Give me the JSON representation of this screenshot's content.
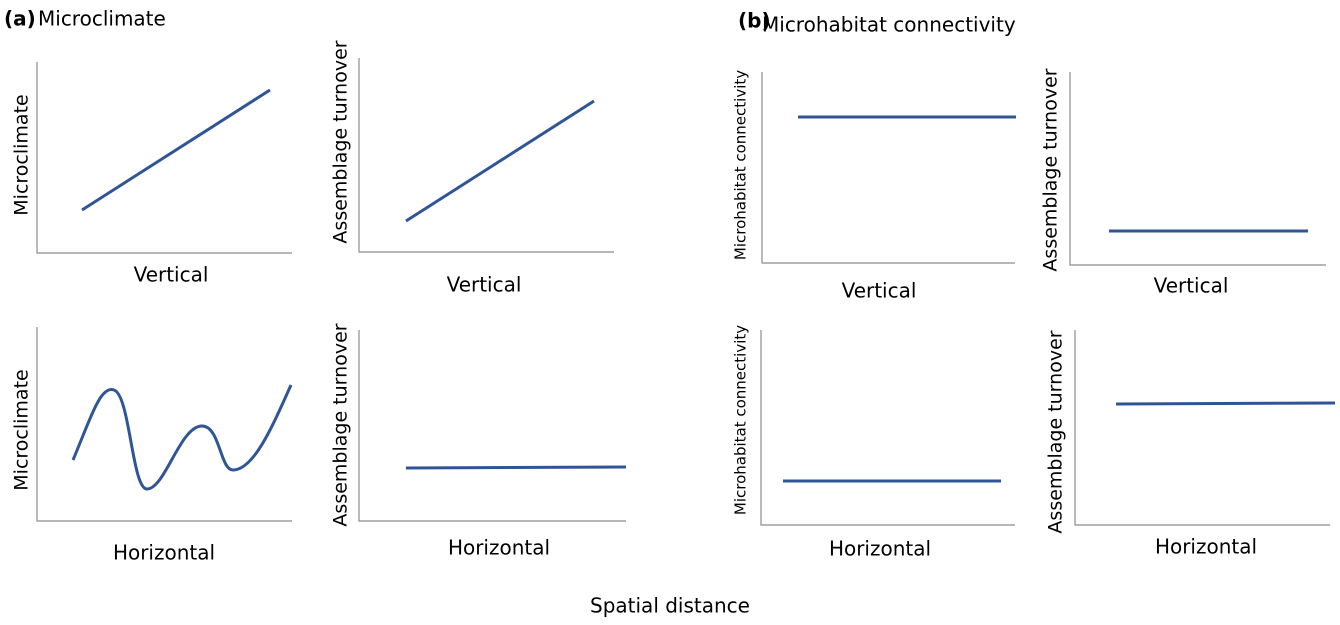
{
  "panels": [
    {
      "label": "(a)",
      "title": "Microclimate",
      "plots": [
        {
          "y_label": "Microclimate",
          "x_label": "Vertical"
        },
        {
          "y_label": "Assemblage turnover",
          "x_label": "Vertical"
        },
        {
          "y_label": "Microclimate",
          "x_label": "Horizontal"
        },
        {
          "y_label": "Assemblage turnover",
          "x_label": "Horizontal"
        }
      ]
    },
    {
      "label": "(b)",
      "title": "Microhabitat connectivity",
      "plots": [
        {
          "y_label": "Microhabitat connectivity",
          "x_label": "Vertical"
        },
        {
          "y_label": "Assemblage turnover",
          "x_label": "Vertical"
        },
        {
          "y_label": "Microhabitat connectivity",
          "x_label": "Horizontal"
        },
        {
          "y_label": "Assemblage turnover",
          "x_label": "Horizontal"
        }
      ]
    }
  ],
  "x_axis_title": "Spatial distance"
}
